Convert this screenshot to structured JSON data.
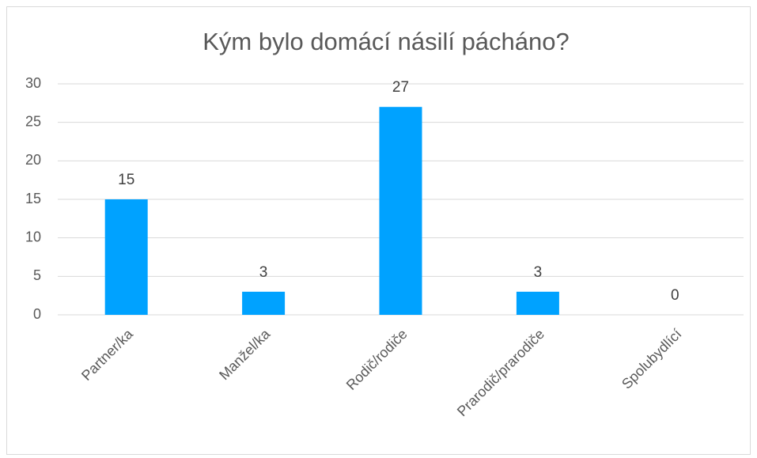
{
  "chart_data": {
    "type": "bar",
    "title": "Kým bylo domácí násilí pácháno?",
    "categories": [
      "Partner/ka",
      "Manžel/ka",
      "Rodič/rodiče",
      "Prarodič/prarodiče",
      "Spolubydlící"
    ],
    "values": [
      15,
      3,
      27,
      3,
      0
    ],
    "color": "#00a2ff",
    "ylim": [
      0,
      30
    ],
    "yticks": [
      0,
      5,
      10,
      15,
      20,
      25,
      30
    ],
    "grid": true,
    "data_labels": true
  }
}
